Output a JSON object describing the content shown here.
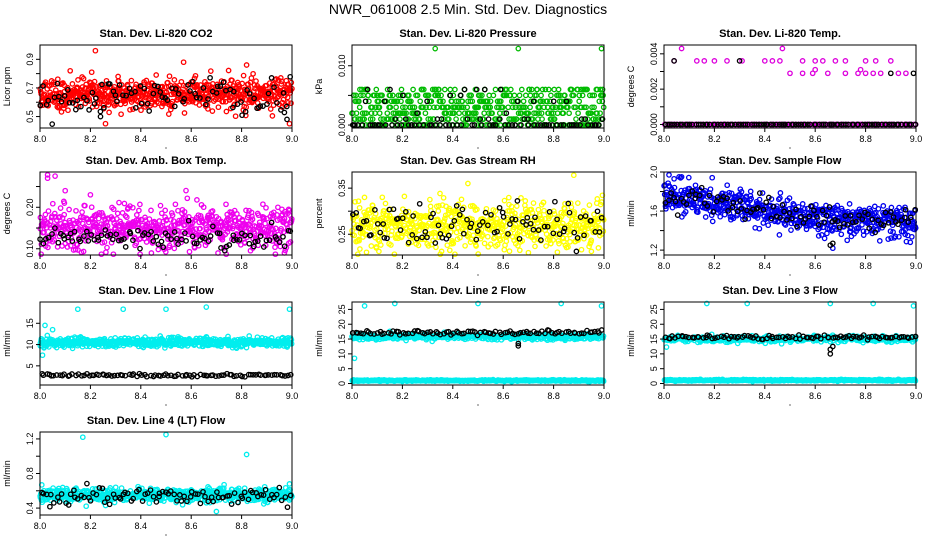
{
  "page": {
    "title": "NWR_061008  2.5 Min. Std. Dev. Diagnostics"
  },
  "chart_data": [
    {
      "type": "scatter",
      "title": "Stan. Dev. Li-820 CO2",
      "xlabel": "",
      "ylabel": "Licor ppm",
      "xlim": [
        8.0,
        9.0
      ],
      "ylim": [
        0.42,
        1.0
      ],
      "xticks": [
        8.0,
        8.2,
        8.4,
        8.6,
        8.8,
        9.0
      ],
      "yticks": [
        0.5,
        0.6,
        0.7,
        0.8,
        0.9
      ],
      "ytick_labels": [
        "0.5",
        "",
        "0.7",
        "",
        "0.9"
      ],
      "series": [
        {
          "name": "primary",
          "color": "#ff0000",
          "mean": 0.66,
          "sd": 0.055,
          "n": 650,
          "seed": 11,
          "extra": [
            [
              8.22,
              0.96
            ],
            [
              8.26,
              0.45
            ],
            [
              8.31,
              0.78
            ],
            [
              8.57,
              0.88
            ],
            [
              8.82,
              0.86
            ],
            [
              8.99,
              0.45
            ],
            [
              8.12,
              0.82
            ]
          ]
        },
        {
          "name": "secondary",
          "color": "#000000",
          "mean": 0.64,
          "sd": 0.06,
          "n": 95,
          "seed": 12,
          "extra": [
            [
              8.24,
              0.5
            ],
            [
              8.98,
              0.48
            ]
          ]
        }
      ]
    },
    {
      "type": "scatter",
      "title": "Stan. Dev. Li-820 Pressure",
      "xlabel": "",
      "ylabel": "kPa",
      "xlim": [
        8.0,
        9.0
      ],
      "ylim": [
        -0.0005,
        0.0135
      ],
      "xticks": [
        8.0,
        8.2,
        8.4,
        8.6,
        8.8,
        9.0
      ],
      "yticks": [
        0.0,
        0.005,
        0.01
      ],
      "ytick_labels": [
        "0.000",
        "",
        "0.010"
      ],
      "series": [
        {
          "name": "primary",
          "color": "#00bb00",
          "levels": [
            0.0,
            0.001,
            0.002,
            0.003,
            0.004,
            0.005,
            0.006
          ],
          "weights": [
            4,
            3,
            3,
            3,
            3,
            3,
            2
          ],
          "n": 520,
          "seed": 21,
          "extra": [
            [
              8.33,
              0.0129
            ],
            [
              8.66,
              0.0129
            ],
            [
              8.99,
              0.0129
            ]
          ]
        },
        {
          "name": "secondary",
          "color": "#000000",
          "levels": [
            0.0,
            0.0,
            0.001,
            0.002,
            0.004,
            0.005,
            0.006
          ],
          "weights": [
            6,
            4,
            2,
            1,
            1,
            1,
            1
          ],
          "n": 90,
          "seed": 22,
          "extra": []
        }
      ]
    },
    {
      "type": "scatter",
      "title": "Stan. Dev. Li-820 Temp.",
      "xlabel": "",
      "ylabel": "degrees C",
      "xlim": [
        8.0,
        9.0
      ],
      "ylim": [
        -0.0002,
        0.0045
      ],
      "xticks": [
        8.0,
        8.2,
        8.4,
        8.6,
        8.8,
        9.0
      ],
      "yticks": [
        0.0,
        0.001,
        0.002,
        0.003,
        0.004
      ],
      "ytick_labels": [
        "0.000",
        "",
        "0.002",
        "",
        "0.004"
      ],
      "series": [
        {
          "name": "primary",
          "color": "#dd00dd",
          "levels": [
            0.0
          ],
          "weights": [
            1
          ],
          "n": 140,
          "seed": 31,
          "extra": [
            [
              8.07,
              0.0043
            ],
            [
              8.47,
              0.0043
            ],
            [
              8.04,
              0.0036
            ],
            [
              8.13,
              0.0036
            ],
            [
              8.16,
              0.0036
            ],
            [
              8.2,
              0.0036
            ],
            [
              8.25,
              0.0036
            ],
            [
              8.31,
              0.0036
            ],
            [
              8.4,
              0.0036
            ],
            [
              8.43,
              0.0036
            ],
            [
              8.46,
              0.0036
            ],
            [
              8.55,
              0.0036
            ],
            [
              8.6,
              0.0036
            ],
            [
              8.63,
              0.0036
            ],
            [
              8.68,
              0.0036
            ],
            [
              8.72,
              0.0036
            ],
            [
              8.8,
              0.0036
            ],
            [
              8.84,
              0.0036
            ],
            [
              8.9,
              0.0036
            ],
            [
              8.5,
              0.0029
            ],
            [
              8.55,
              0.0029
            ],
            [
              8.59,
              0.0029
            ],
            [
              8.65,
              0.0029
            ],
            [
              8.72,
              0.0029
            ],
            [
              8.77,
              0.0029
            ],
            [
              8.8,
              0.0029
            ],
            [
              8.83,
              0.0029
            ],
            [
              8.86,
              0.0029
            ],
            [
              8.93,
              0.0029
            ],
            [
              8.96,
              0.0029
            ],
            [
              8.6,
              0.0031
            ],
            [
              8.78,
              0.0031
            ]
          ]
        },
        {
          "name": "secondary",
          "color": "#000000",
          "levels": [
            0.0
          ],
          "weights": [
            1
          ],
          "n": 100,
          "seed": 32,
          "extra": [
            [
              8.04,
              0.0036
            ],
            [
              8.3,
              0.0036
            ],
            [
              8.9,
              0.0029
            ],
            [
              8.99,
              0.0029
            ]
          ]
        }
      ]
    },
    {
      "type": "scatter",
      "title": "Stan. Dev. Amb. Box Temp.",
      "xlabel": "",
      "ylabel": "degrees C",
      "xlim": [
        8.0,
        9.0
      ],
      "ylim": [
        0.085,
        0.285
      ],
      "xticks": [
        8.0,
        8.2,
        8.4,
        8.6,
        8.8,
        9.0
      ],
      "yticks": [
        0.1,
        0.15,
        0.2,
        0.25
      ],
      "ytick_labels": [
        "0.10",
        "",
        "0.20",
        ""
      ],
      "series": [
        {
          "name": "primary",
          "color": "#ee00ee",
          "mean": 0.15,
          "sd": 0.025,
          "n": 620,
          "seed": 41,
          "extra": [
            [
              8.03,
              0.278
            ],
            [
              8.06,
              0.275
            ],
            [
              8.03,
              0.27
            ],
            [
              8.1,
              0.24
            ],
            [
              8.2,
              0.23
            ],
            [
              8.97,
              0.09
            ]
          ]
        },
        {
          "name": "secondary",
          "color": "#000000",
          "mean": 0.125,
          "sd": 0.012,
          "n": 95,
          "seed": 42,
          "extra": []
        }
      ]
    },
    {
      "type": "scatter",
      "title": "Stan. Dev. Gas Stream RH",
      "xlabel": "",
      "ylabel": "percent",
      "xlim": [
        8.0,
        9.0
      ],
      "ylim": [
        0.205,
        0.385
      ],
      "xticks": [
        8.0,
        8.2,
        8.4,
        8.6,
        8.8,
        9.0
      ],
      "yticks": [
        0.25,
        0.3,
        0.35
      ],
      "ytick_labels": [
        "0.25",
        "",
        "0.35"
      ],
      "series": [
        {
          "name": "primary",
          "color": "#ffff00",
          "mean": 0.27,
          "sd": 0.025,
          "n": 620,
          "seed": 51,
          "extra": [
            [
              8.88,
              0.378
            ],
            [
              8.46,
              0.36
            ],
            [
              8.7,
              0.21
            ]
          ]
        },
        {
          "name": "secondary",
          "color": "#000000",
          "mean": 0.27,
          "sd": 0.025,
          "n": 95,
          "seed": 52,
          "extra": []
        }
      ]
    },
    {
      "type": "scatter",
      "title": "Stan. Dev. Sample Flow",
      "xlabel": "",
      "ylabel": "ml/min",
      "xlim": [
        8.0,
        9.0
      ],
      "ylim": [
        1.15,
        2.0
      ],
      "xticks": [
        8.0,
        8.2,
        8.4,
        8.6,
        8.8,
        9.0
      ],
      "yticks": [
        1.2,
        1.4,
        1.6,
        1.8,
        2.0
      ],
      "ytick_labels": [
        "1.2",
        "",
        "1.6",
        "",
        "2.0"
      ],
      "trend": [
        [
          8.0,
          1.75
        ],
        [
          8.3,
          1.65
        ],
        [
          8.5,
          1.55
        ],
        [
          8.7,
          1.52
        ],
        [
          9.0,
          1.5
        ]
      ],
      "series": [
        {
          "name": "primary",
          "color": "#0000ee",
          "sd": 0.08,
          "n": 620,
          "seed": 61,
          "extra": [
            [
              8.02,
              1.97
            ],
            [
              8.04,
              1.93
            ],
            [
              8.06,
              1.95
            ],
            [
              8.67,
              1.22
            ]
          ]
        },
        {
          "name": "secondary",
          "color": "#000000",
          "sd": 0.07,
          "n": 95,
          "seed": 62,
          "extra": [
            [
              8.66,
              1.25
            ],
            [
              8.67,
              1.27
            ]
          ]
        }
      ]
    },
    {
      "type": "scatter",
      "title": "Stan. Dev. Line 1 Flow",
      "xlabel": "",
      "ylabel": "ml/min",
      "xlim": [
        8.0,
        9.0
      ],
      "ylim": [
        0.5,
        20.0
      ],
      "xticks": [
        8.0,
        8.2,
        8.4,
        8.6,
        8.8,
        9.0
      ],
      "yticks": [
        5,
        10,
        15
      ],
      "ytick_labels": [
        "5",
        "10",
        "15"
      ],
      "series": [
        {
          "name": "primary",
          "color": "#00eeee",
          "mean": 10.5,
          "sd": 0.55,
          "n": 620,
          "seed": 71,
          "extra": [
            [
              8.01,
              7.5
            ],
            [
              8.15,
              18.3
            ],
            [
              8.33,
              18.3
            ],
            [
              8.5,
              18.3
            ],
            [
              8.66,
              18.8
            ],
            [
              8.99,
              18.3
            ],
            [
              8.02,
              14.5
            ],
            [
              8.05,
              13.5
            ]
          ]
        },
        {
          "name": "secondary",
          "color": "#000000",
          "mean": 2.8,
          "sd": 0.18,
          "n": 95,
          "seed": 72,
          "extra": []
        }
      ]
    },
    {
      "type": "scatter",
      "title": "Stan. Dev. Line 2 Flow",
      "xlabel": "",
      "ylabel": "ml/min",
      "xlim": [
        8.0,
        9.0
      ],
      "ylim": [
        -0.5,
        27.5
      ],
      "xticks": [
        8.0,
        8.2,
        8.4,
        8.6,
        8.8,
        9.0
      ],
      "yticks": [
        0,
        5,
        10,
        15,
        20,
        25
      ],
      "ytick_labels": [
        "0",
        "5",
        "10",
        "15",
        "20",
        "25"
      ],
      "series": [
        {
          "name": "primary_high",
          "color": "#00eeee",
          "mean": 15.8,
          "sd": 0.5,
          "n": 400,
          "seed": 81,
          "extra": [
            [
              8.05,
              26.2
            ],
            [
              8.17,
              27.0
            ],
            [
              8.5,
              27.0
            ],
            [
              8.83,
              27.0
            ],
            [
              8.99,
              26.2
            ],
            [
              8.01,
              8.5
            ]
          ]
        },
        {
          "name": "primary_low",
          "color": "#00eeee",
          "mean": 1.0,
          "sd": 0.12,
          "n": 380,
          "seed": 83,
          "extra": []
        },
        {
          "name": "secondary",
          "color": "#000000",
          "mean": 17.2,
          "sd": 0.35,
          "n": 95,
          "seed": 82,
          "extra": [
            [
              8.66,
              12.7
            ],
            [
              8.66,
              13.5
            ]
          ]
        }
      ]
    },
    {
      "type": "scatter",
      "title": "Stan. Dev. Line 3 Flow",
      "xlabel": "",
      "ylabel": "ml/min",
      "xlim": [
        8.0,
        9.0
      ],
      "ylim": [
        -0.5,
        27.5
      ],
      "xticks": [
        8.0,
        8.2,
        8.4,
        8.6,
        8.8,
        9.0
      ],
      "yticks": [
        0,
        5,
        10,
        15,
        20,
        25
      ],
      "ytick_labels": [
        "0",
        "5",
        "10",
        "15",
        "20",
        "25"
      ],
      "series": [
        {
          "name": "primary_high",
          "color": "#00eeee",
          "mean": 15.0,
          "sd": 0.5,
          "n": 400,
          "seed": 91,
          "extra": [
            [
              8.17,
              27.0
            ],
            [
              8.33,
              27.0
            ],
            [
              8.66,
              27.0
            ],
            [
              8.83,
              27.0
            ],
            [
              8.99,
              26.2
            ],
            [
              8.01,
              12.3
            ]
          ]
        },
        {
          "name": "primary_low",
          "color": "#00eeee",
          "mean": 1.1,
          "sd": 0.12,
          "n": 380,
          "seed": 93,
          "extra": []
        },
        {
          "name": "secondary",
          "color": "#000000",
          "mean": 15.6,
          "sd": 0.35,
          "n": 95,
          "seed": 92,
          "extra": [
            [
              8.66,
              10.0
            ],
            [
              8.66,
              11.5
            ],
            [
              8.67,
              12.5
            ]
          ]
        }
      ]
    },
    {
      "type": "scatter",
      "title": "Stan. Dev. Line 4 (LT) Flow",
      "xlabel": "",
      "ylabel": "ml/min",
      "xlim": [
        8.0,
        9.0
      ],
      "ylim": [
        0.32,
        1.28
      ],
      "xticks": [
        8.0,
        8.2,
        8.4,
        8.6,
        8.8,
        9.0
      ],
      "yticks": [
        0.4,
        0.6,
        0.8,
        1.0,
        1.2
      ],
      "ytick_labels": [
        "0.4",
        "",
        "0.8",
        "",
        "1.2"
      ],
      "series": [
        {
          "name": "primary",
          "color": "#00eeee",
          "mean": 0.55,
          "sd": 0.04,
          "n": 620,
          "seed": 101,
          "extra": [
            [
              8.17,
              1.22
            ],
            [
              8.5,
              1.25
            ],
            [
              8.82,
              1.02
            ],
            [
              8.99,
              0.68
            ],
            [
              8.7,
              0.36
            ]
          ]
        },
        {
          "name": "secondary",
          "color": "#000000",
          "mean": 0.54,
          "sd": 0.05,
          "n": 95,
          "seed": 102,
          "extra": []
        }
      ]
    }
  ]
}
